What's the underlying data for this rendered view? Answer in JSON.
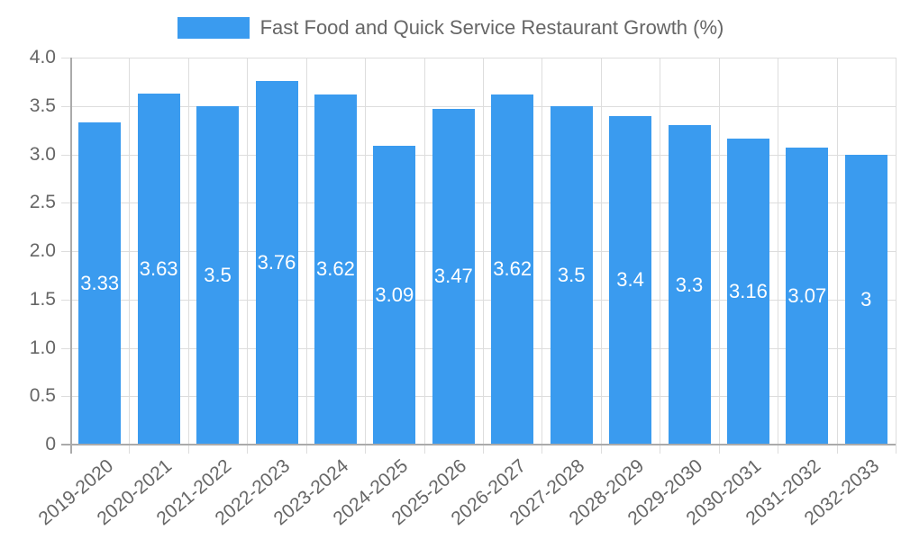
{
  "chart_data": {
    "type": "bar",
    "title": "",
    "legend": {
      "position": "top",
      "entries": [
        "Fast Food and Quick Service Restaurant Growth (%)"
      ]
    },
    "categories": [
      "2019-2020",
      "2020-2021",
      "2021-2022",
      "2022-2023",
      "2023-2024",
      "2024-2025",
      "2025-2026",
      "2026-2027",
      "2027-2028",
      "2028-2029",
      "2029-2030",
      "2030-2031",
      "2031-2032",
      "2032-2033"
    ],
    "series": [
      {
        "name": "Fast Food and Quick Service Restaurant Growth (%)",
        "color": "#3a9bef",
        "values": [
          3.33,
          3.63,
          3.5,
          3.76,
          3.62,
          3.09,
          3.47,
          3.62,
          3.5,
          3.4,
          3.3,
          3.16,
          3.07,
          3
        ]
      }
    ],
    "data_labels": [
      "3.33",
      "3.63",
      "3.5",
      "3.76",
      "3.62",
      "3.09",
      "3.47",
      "3.62",
      "3.5",
      "3.4",
      "3.3",
      "3.16",
      "3.07",
      "3"
    ],
    "xlabel": "",
    "ylabel": "",
    "ylim": [
      0,
      4.0
    ],
    "yticks": [
      "0",
      "0.5",
      "1.0",
      "1.5",
      "2.0",
      "2.5",
      "3.0",
      "3.5",
      "4.0"
    ],
    "grid": true
  },
  "legend": {
    "label": "Fast Food and Quick Service Restaurant Growth (%)"
  }
}
